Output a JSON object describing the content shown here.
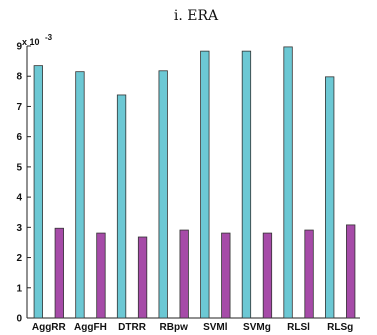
{
  "chart_data": {
    "type": "bar",
    "title": "i.  ERA",
    "xlabel": "",
    "ylabel": "",
    "y_scale_label": "x 10",
    "y_scale_exponent": "-3",
    "ylim": [
      0,
      9
    ],
    "yticks": [
      "0",
      "1",
      "2",
      "3",
      "4",
      "5",
      "6",
      "7",
      "8",
      "9"
    ],
    "categories": [
      "AggRR",
      "AggFH",
      "DTRR",
      "RBpw",
      "SVMl",
      "SVMg",
      "RLSl",
      "RLSg"
    ],
    "series": [
      {
        "color": "#6cc8d4",
        "values": [
          8.35,
          8.15,
          7.38,
          8.18,
          8.83,
          8.83,
          8.97,
          7.98
        ]
      },
      {
        "color": "#a64ba8",
        "values": [
          2.97,
          2.81,
          2.68,
          2.91,
          2.81,
          2.81,
          2.91,
          3.08
        ]
      }
    ],
    "grid": false,
    "legend": "none"
  }
}
